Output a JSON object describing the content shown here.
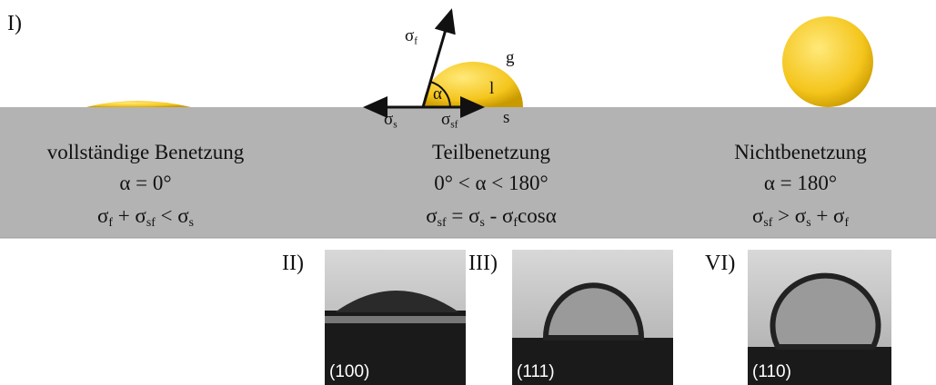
{
  "figure_label": "I)",
  "scheme": {
    "sigma_f": [
      {
        "text": "σ"
      },
      {
        "sub": "f"
      }
    ],
    "gas": "g",
    "liquid": "l",
    "angle": "α",
    "sigma_s": [
      {
        "text": "σ"
      },
      {
        "sub": "s"
      }
    ],
    "sigma_sf": [
      {
        "text": "σ"
      },
      {
        "sub": "sf"
      }
    ],
    "solid": "s"
  },
  "columns": [
    {
      "title": "vollständige Benetzung",
      "angle": "α = 0°",
      "condition": [
        {
          "text": "σ"
        },
        {
          "sub": "f"
        },
        {
          "text": " + σ"
        },
        {
          "sub": "sf"
        },
        {
          "text": " < σ"
        },
        {
          "sub": "s"
        }
      ]
    },
    {
      "title": "Teilbenetzung",
      "angle": "0° < α < 180°",
      "condition": [
        {
          "text": "σ"
        },
        {
          "sub": "sf"
        },
        {
          "text": " = σ"
        },
        {
          "sub": "s"
        },
        {
          "text": " - σ"
        },
        {
          "sub": "f"
        },
        {
          "text": "cosα"
        }
      ]
    },
    {
      "title": "Nichtbenetzung",
      "angle": "α = 180°",
      "condition": [
        {
          "text": "σ"
        },
        {
          "sub": "sf"
        },
        {
          "text": " > σ"
        },
        {
          "sub": "s"
        },
        {
          "text": " + σ"
        },
        {
          "sub": "f"
        }
      ]
    }
  ],
  "photos": [
    {
      "label": "II)",
      "face": "(100)"
    },
    {
      "label": "III)",
      "face": "(111)"
    },
    {
      "label": "VI)",
      "face": "(110)"
    }
  ]
}
